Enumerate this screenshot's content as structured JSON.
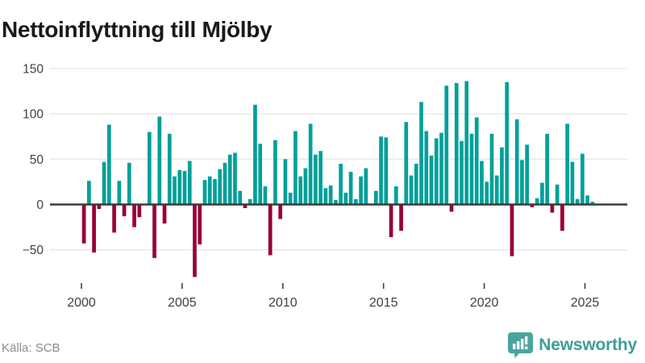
{
  "header": {
    "title": "Nettoinflyttning till Mjölby"
  },
  "chart_data": {
    "type": "bar",
    "title": "Nettoinflyttning till Mjölby",
    "frequency": "quarterly",
    "x_start": "2000 Q1",
    "x_end": "2025 Q2",
    "values": [
      -43,
      26,
      -53,
      -5,
      47,
      88,
      -31,
      26,
      -13,
      46,
      -25,
      -14,
      0,
      80,
      -59,
      97,
      -21,
      78,
      31,
      38,
      37,
      48,
      -80,
      -44,
      27,
      31,
      28,
      39,
      46,
      55,
      57,
      15,
      -4,
      6,
      110,
      67,
      20,
      -56,
      71,
      -16,
      50,
      13,
      81,
      31,
      40,
      89,
      55,
      59,
      18,
      21,
      5,
      45,
      13,
      36,
      6,
      31,
      40,
      0,
      15,
      75,
      74,
      -36,
      20,
      -29,
      91,
      32,
      45,
      113,
      81,
      54,
      73,
      79,
      131,
      -8,
      134,
      70,
      136,
      78,
      96,
      48,
      25,
      78,
      32,
      63,
      135,
      -57,
      94,
      49,
      66,
      -3,
      7,
      24,
      78,
      -9,
      22,
      -29,
      89,
      47,
      6,
      56,
      10,
      3
    ],
    "year_ticks": [
      2000,
      2005,
      2010,
      2015,
      2020,
      2025
    ],
    "x_tick_labels": [
      "2000",
      "2005",
      "2010",
      "2015",
      "2020",
      "2025"
    ],
    "y_ticks": [
      150,
      100,
      50,
      0,
      -50
    ],
    "ylim": [
      -85,
      155
    ],
    "grid": "horizontal",
    "legend": "none",
    "colors": {
      "positive": "#00a099",
      "negative": "#990038",
      "zero_line": "#3b3b3b",
      "gridline": "#e6e6e6",
      "axis_text": "#3f3f3f"
    }
  },
  "footer": {
    "source": "Källa: SCB",
    "brand": "Newsworthy",
    "brand_color": "#3d9d97",
    "icons": {
      "logo": "bar-chart-speech-bubble-icon"
    }
  }
}
